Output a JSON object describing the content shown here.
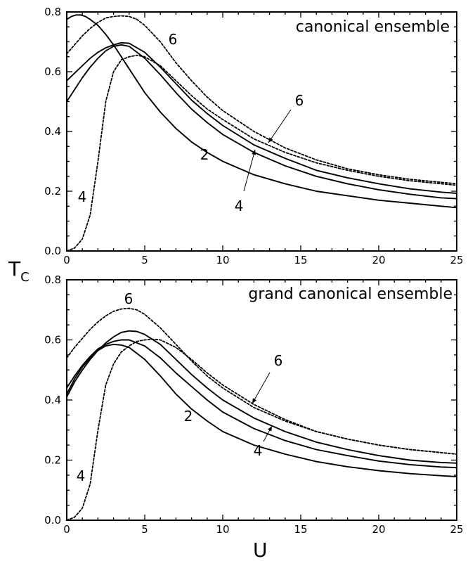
{
  "chart_data": [
    {
      "type": "line",
      "title": "canonical ensemble",
      "xlabel": "U",
      "ylabel": "T_C",
      "xlim": [
        0,
        25
      ],
      "ylim": [
        0,
        0.8
      ],
      "xticks": [
        "0",
        "5",
        "10",
        "15",
        "20",
        "25"
      ],
      "yticks": [
        "0.0",
        "0.2",
        "0.4",
        "0.6",
        "0.8"
      ],
      "annotations": [
        "6",
        "6",
        "2",
        "4",
        "4"
      ],
      "series": [
        {
          "style": "dashed",
          "x": [
            0,
            0.5,
            1,
            1.5,
            2,
            2.5,
            3,
            3.5,
            4,
            4.5,
            5,
            6,
            7,
            8,
            9,
            10,
            12,
            14,
            16,
            18,
            20,
            22,
            24,
            25
          ],
          "y": [
            0,
            0.01,
            0.04,
            0.12,
            0.3,
            0.5,
            0.6,
            0.64,
            0.65,
            0.655,
            0.65,
            0.62,
            0.57,
            0.52,
            0.475,
            0.44,
            0.375,
            0.33,
            0.295,
            0.27,
            0.25,
            0.235,
            0.225,
            0.22
          ]
        },
        {
          "style": "dashed",
          "x": [
            0,
            0.5,
            1,
            1.5,
            2,
            2.5,
            3,
            3.5,
            4,
            4.5,
            5,
            6,
            7,
            8,
            9,
            10,
            12,
            14,
            16,
            18,
            20,
            22,
            24,
            25
          ],
          "y": [
            0.66,
            0.69,
            0.72,
            0.745,
            0.765,
            0.78,
            0.785,
            0.787,
            0.785,
            0.775,
            0.755,
            0.7,
            0.63,
            0.57,
            0.515,
            0.47,
            0.4,
            0.345,
            0.305,
            0.275,
            0.255,
            0.24,
            0.23,
            0.225
          ]
        },
        {
          "style": "solid",
          "x": [
            0,
            0.3,
            0.6,
            0.9,
            1.2,
            1.5,
            2,
            2.5,
            3,
            3.5,
            4,
            5,
            6,
            7,
            8,
            9,
            10,
            12,
            14,
            16,
            18,
            20,
            22,
            24,
            25
          ],
          "y": [
            0.775,
            0.785,
            0.79,
            0.79,
            0.785,
            0.775,
            0.755,
            0.725,
            0.69,
            0.65,
            0.61,
            0.53,
            0.465,
            0.41,
            0.365,
            0.33,
            0.3,
            0.255,
            0.225,
            0.2,
            0.185,
            0.17,
            0.16,
            0.15,
            0.145
          ]
        },
        {
          "style": "solid",
          "x": [
            0,
            0.5,
            1,
            1.5,
            2,
            2.5,
            3,
            3.5,
            4,
            5,
            6,
            7,
            8,
            9,
            10,
            12,
            14,
            16,
            18,
            20,
            22,
            24,
            25
          ],
          "y": [
            0.5,
            0.54,
            0.58,
            0.615,
            0.645,
            0.67,
            0.685,
            0.69,
            0.685,
            0.645,
            0.59,
            0.53,
            0.475,
            0.43,
            0.39,
            0.33,
            0.285,
            0.25,
            0.225,
            0.205,
            0.19,
            0.178,
            0.175
          ]
        },
        {
          "style": "solid",
          "x": [
            0,
            0.5,
            1,
            1.5,
            2,
            2.5,
            3,
            3.5,
            4,
            5,
            6,
            7,
            8,
            9,
            10,
            12,
            14,
            16,
            18,
            20,
            22,
            24,
            25
          ],
          "y": [
            0.57,
            0.595,
            0.62,
            0.645,
            0.665,
            0.68,
            0.69,
            0.697,
            0.695,
            0.665,
            0.615,
            0.56,
            0.505,
            0.46,
            0.42,
            0.355,
            0.31,
            0.27,
            0.245,
            0.225,
            0.208,
            0.197,
            0.193
          ]
        }
      ]
    },
    {
      "type": "line",
      "title": "grand canonical ensemble",
      "xlabel": "U",
      "ylabel": "T_C",
      "xlim": [
        0,
        25
      ],
      "ylim": [
        0,
        0.8
      ],
      "xticks": [
        "0",
        "5",
        "10",
        "15",
        "20",
        "25"
      ],
      "yticks": [
        "0.0",
        "0.2",
        "0.4",
        "0.6",
        "0.8"
      ],
      "annotations": [
        "6",
        "6",
        "2",
        "4",
        "4"
      ],
      "series": [
        {
          "style": "dashed",
          "x": [
            0,
            0.5,
            1,
            1.5,
            2,
            2.5,
            3,
            3.5,
            4,
            4.5,
            5,
            5.5,
            6,
            7,
            8,
            9,
            10,
            12,
            14,
            16,
            18,
            20,
            22,
            24,
            25
          ],
          "y": [
            0,
            0.01,
            0.04,
            0.12,
            0.3,
            0.45,
            0.52,
            0.56,
            0.58,
            0.595,
            0.6,
            0.602,
            0.6,
            0.575,
            0.535,
            0.49,
            0.45,
            0.385,
            0.335,
            0.295,
            0.27,
            0.25,
            0.235,
            0.225,
            0.22
          ]
        },
        {
          "style": "dashed",
          "x": [
            0,
            0.5,
            1,
            1.5,
            2,
            2.5,
            3,
            3.5,
            4,
            4.5,
            5,
            6,
            7,
            8,
            9,
            10,
            12,
            14,
            16,
            18,
            20,
            22,
            24,
            25
          ],
          "y": [
            0.54,
            0.575,
            0.605,
            0.635,
            0.66,
            0.68,
            0.695,
            0.703,
            0.705,
            0.7,
            0.685,
            0.64,
            0.585,
            0.53,
            0.48,
            0.44,
            0.375,
            0.33,
            0.295,
            0.27,
            0.25,
            0.235,
            0.225,
            0.22
          ]
        },
        {
          "style": "solid",
          "x": [
            0,
            0.5,
            1,
            1.5,
            2,
            2.5,
            3,
            3.5,
            4,
            5,
            6,
            7,
            8,
            9,
            10,
            12,
            14,
            16,
            18,
            20,
            22,
            24,
            25
          ],
          "y": [
            0.42,
            0.47,
            0.51,
            0.54,
            0.565,
            0.58,
            0.585,
            0.583,
            0.575,
            0.535,
            0.48,
            0.42,
            0.37,
            0.33,
            0.295,
            0.25,
            0.22,
            0.195,
            0.178,
            0.165,
            0.155,
            0.148,
            0.145
          ]
        },
        {
          "style": "solid",
          "x": [
            0,
            0.5,
            1,
            1.5,
            2,
            2.5,
            3,
            3.5,
            4,
            5,
            6,
            7,
            8,
            9,
            10,
            12,
            14,
            16,
            18,
            20,
            22,
            24,
            25
          ],
          "y": [
            0.44,
            0.48,
            0.515,
            0.545,
            0.57,
            0.585,
            0.595,
            0.6,
            0.6,
            0.58,
            0.54,
            0.49,
            0.445,
            0.4,
            0.36,
            0.305,
            0.265,
            0.235,
            0.215,
            0.197,
            0.185,
            0.177,
            0.175
          ]
        },
        {
          "style": "solid",
          "x": [
            0,
            0.5,
            1,
            1.5,
            2,
            2.5,
            3,
            3.5,
            4,
            4.5,
            5,
            6,
            7,
            8,
            9,
            10,
            12,
            14,
            16,
            18,
            20,
            22,
            24,
            25
          ],
          "y": [
            0.41,
            0.46,
            0.5,
            0.535,
            0.565,
            0.59,
            0.61,
            0.625,
            0.63,
            0.628,
            0.618,
            0.585,
            0.535,
            0.485,
            0.44,
            0.4,
            0.34,
            0.295,
            0.26,
            0.235,
            0.215,
            0.2,
            0.192,
            0.19
          ]
        }
      ]
    }
  ],
  "figure": {
    "ylabel_main": "T",
    "ylabel_sub": "C",
    "xlabel_main": "U"
  }
}
